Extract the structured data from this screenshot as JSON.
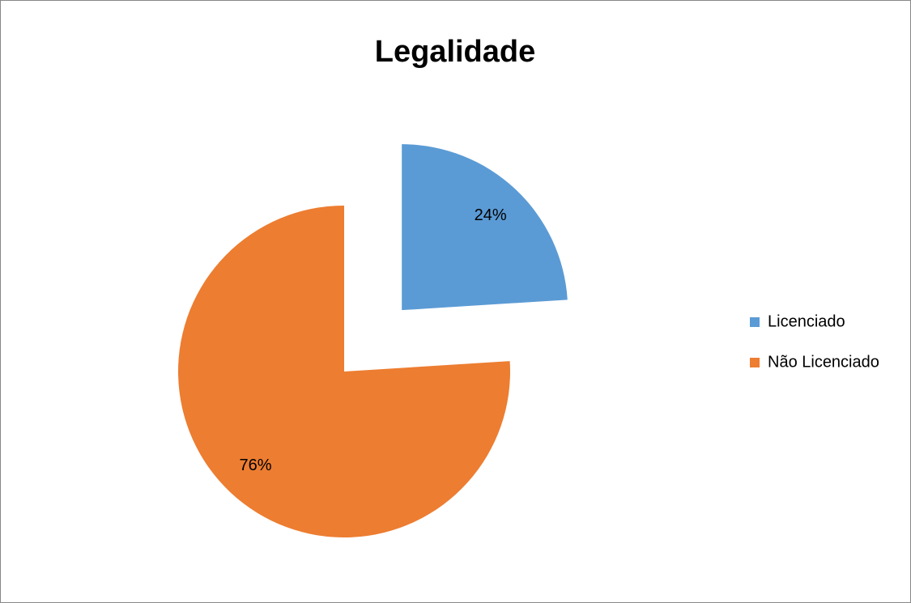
{
  "chart_data": {
    "type": "pie",
    "title": "Legalidade",
    "categories": [
      "Licenciado",
      "Não Licenciado"
    ],
    "values": [
      24,
      76
    ],
    "value_labels": [
      "24%",
      "76%"
    ],
    "colors": [
      "#5b9bd5",
      "#ed7d31"
    ],
    "legend": "right"
  }
}
